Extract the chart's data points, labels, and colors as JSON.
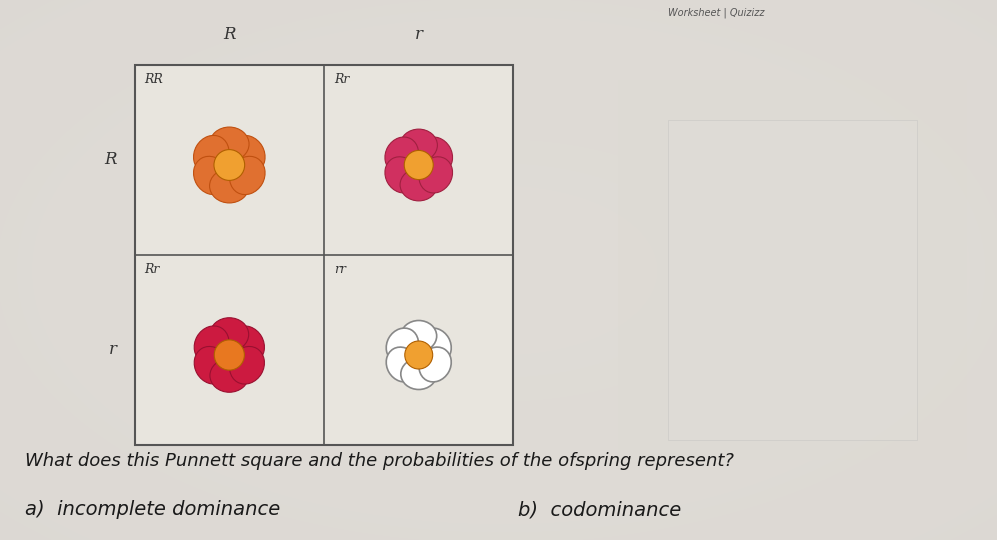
{
  "title": "Worksheet | Quizizz",
  "question": "What does this Punnett square and the probabilities of the ofspring represent?",
  "option_a": "a)  incomplete dominance",
  "option_b": "b)  codominance",
  "bg_color": "#d8d5ce",
  "paper_color": "#e8e5de",
  "grid_labels_top": [
    "R",
    "r"
  ],
  "grid_labels_left": [
    "R",
    "r"
  ],
  "genotypes": [
    "RR",
    "Rr",
    "Rr",
    "rr"
  ],
  "flower_configs": [
    {
      "petals": "#e07030",
      "center": "#f0a030",
      "outline": "#c05010",
      "style": "orange"
    },
    {
      "petals": "#d03060",
      "center": "#f0a030",
      "outline": "#a02040",
      "style": "pink"
    },
    {
      "petals": "#cc1a40",
      "center": "#e87820",
      "outline": "#991030",
      "style": "red"
    },
    {
      "petals": "#ffffff",
      "center": "#f0a030",
      "outline": "#888888",
      "style": "white"
    }
  ]
}
